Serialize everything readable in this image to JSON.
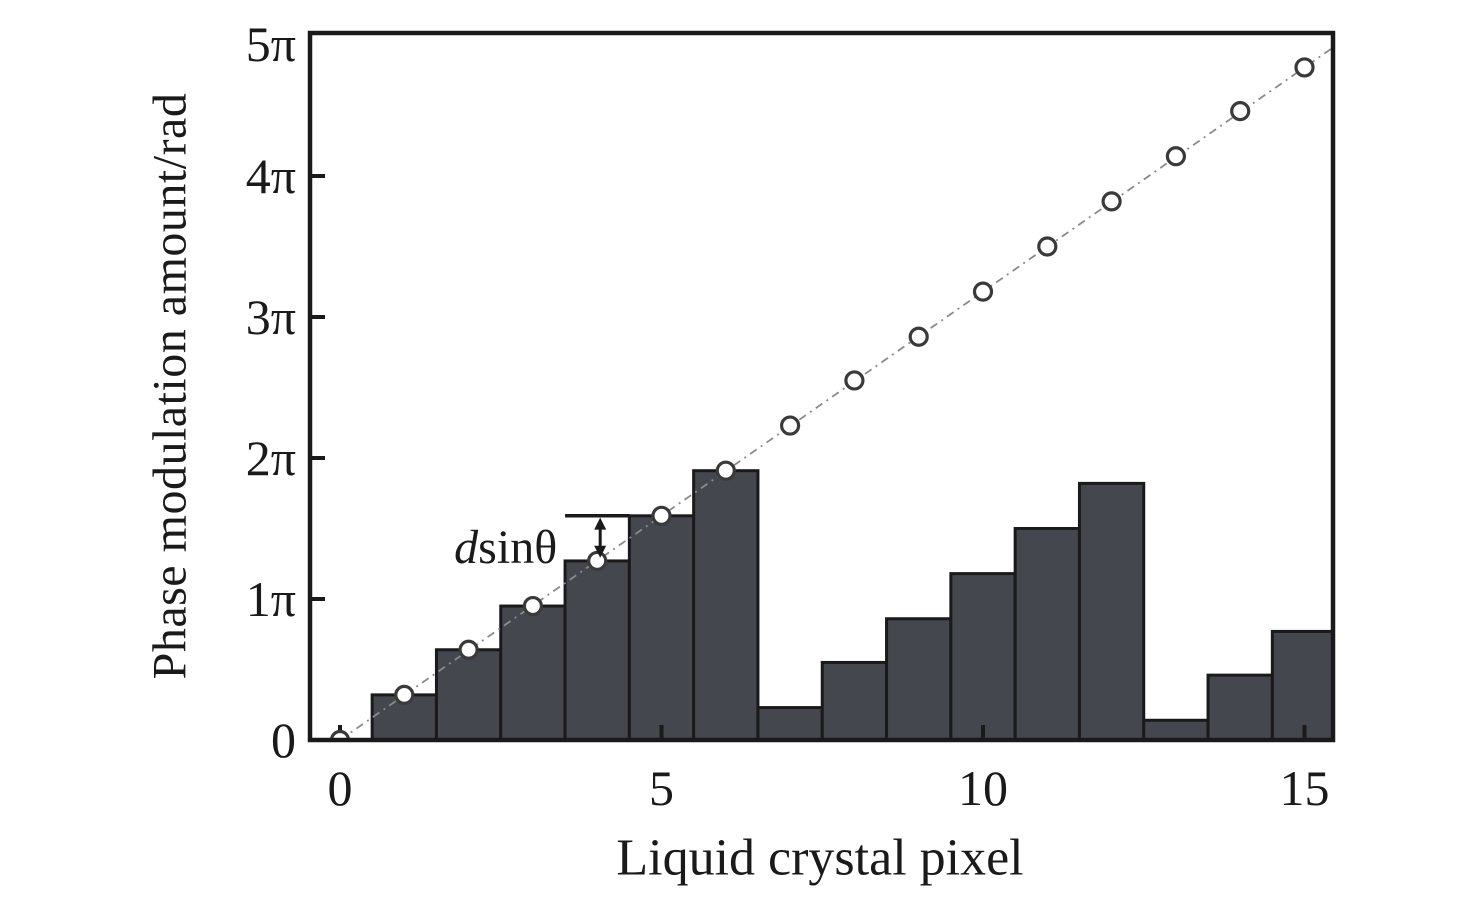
{
  "chart_data": {
    "type": "bar",
    "title": "",
    "xlabel": "Liquid crystal pixel",
    "ylabel": "Phase modulation amount/rad",
    "x_tick_labels": [
      "0",
      "5",
      "10",
      "15"
    ],
    "x_tick_values": [
      0,
      5,
      10,
      15
    ],
    "y_tick_labels": [
      "0",
      "1π",
      "2π",
      "3π",
      "4π",
      "5π"
    ],
    "y_tick_values_pi": [
      0,
      1,
      2,
      3,
      4,
      5
    ],
    "xlim": [
      -0.47,
      15.45
    ],
    "ylim_pi": [
      0,
      5.02
    ],
    "grid": false,
    "legend": "none",
    "x": [
      0,
      1,
      2,
      3,
      4,
      5,
      6,
      7,
      8,
      9,
      10,
      11,
      12,
      13,
      14,
      15
    ],
    "series": [
      {
        "name": "ideal-linear-phase-line",
        "style": "dash-dot line with open circle markers",
        "values_pi": [
          0,
          0.32,
          0.64,
          0.95,
          1.27,
          1.59,
          1.91,
          2.23,
          2.55,
          2.86,
          3.18,
          3.5,
          3.82,
          4.14,
          4.46,
          4.77
        ]
      },
      {
        "name": "wrapped-phase-bars",
        "style": "bars (phase modulo 2π)",
        "values_pi": [
          0,
          0.32,
          0.64,
          0.95,
          1.27,
          1.59,
          1.91,
          0.23,
          0.55,
          0.86,
          1.18,
          1.5,
          1.82,
          0.14,
          0.46,
          0.77
        ]
      }
    ],
    "annotation": {
      "label_italic": "d",
      "label_rest": "sinθ",
      "at_x": 4,
      "arrow_from_pi": 1.3,
      "arrow_to_pi": 1.57,
      "guide_y_pi": 1.59,
      "guide_x_from": 3.5,
      "guide_x_to": 4.5
    },
    "colors": {
      "bar_fill": "#45474e",
      "outline": "#1a1a1a",
      "line": "#8a8a8a",
      "marker_fill": "#ffffff",
      "marker_stroke": "#3a3a3a",
      "text": "#1a1a1a"
    }
  }
}
